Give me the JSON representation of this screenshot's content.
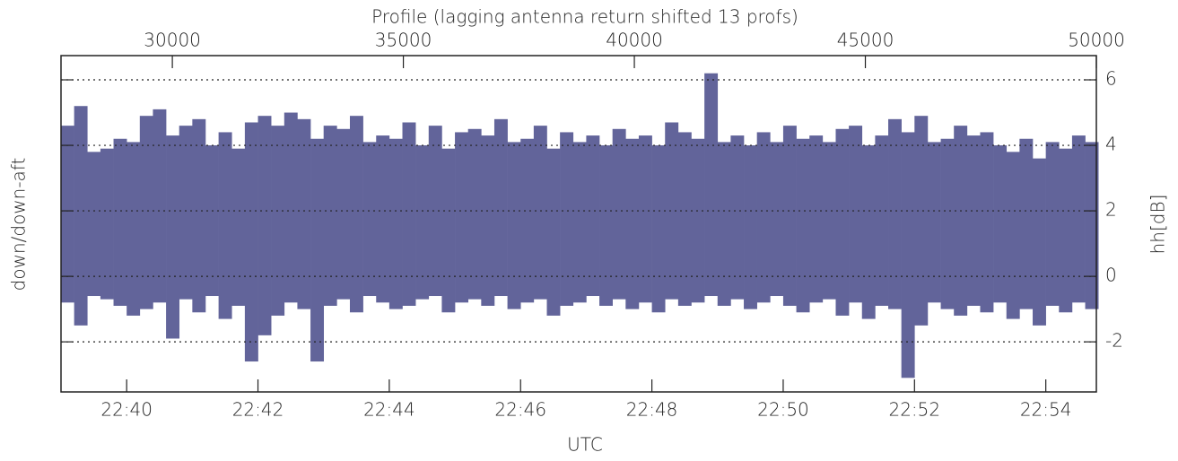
{
  "chart_data": {
    "type": "range",
    "title": "Profile (lagging antenna return shifted 13 profs)",
    "xlabel": "UTC",
    "ylabel": "down/down-aft",
    "y2label": "hh[dB]",
    "color": "#62649a",
    "grid": true,
    "xlim": [
      1359.0,
      1374.77
    ],
    "xticks": [
      {
        "value": 1360,
        "label": "22:40"
      },
      {
        "value": 1362,
        "label": "22:42"
      },
      {
        "value": 1364,
        "label": "22:44"
      },
      {
        "value": 1366,
        "label": "22:46"
      },
      {
        "value": 1368,
        "label": "22:48"
      },
      {
        "value": 1370,
        "label": "22:50"
      },
      {
        "value": 1372,
        "label": "22:52"
      },
      {
        "value": 1374,
        "label": "22:54"
      }
    ],
    "x2lim": [
      27590,
      50000
    ],
    "x2ticks": [
      30000,
      35000,
      40000,
      45000,
      50000
    ],
    "ylim": [
      -3.53,
      6.74
    ],
    "yticks": [
      -2,
      0,
      2,
      4,
      6
    ],
    "x": [
      1359.1,
      1359.3,
      1359.5,
      1359.7,
      1359.9,
      1360.1,
      1360.3,
      1360.5,
      1360.7,
      1360.9,
      1361.1,
      1361.3,
      1361.5,
      1361.7,
      1361.9,
      1362.1,
      1362.3,
      1362.5,
      1362.7,
      1362.9,
      1363.1,
      1363.3,
      1363.5,
      1363.7,
      1363.9,
      1364.1,
      1364.3,
      1364.5,
      1364.7,
      1364.9,
      1365.1,
      1365.3,
      1365.5,
      1365.7,
      1365.9,
      1366.1,
      1366.3,
      1366.5,
      1366.7,
      1366.9,
      1367.1,
      1367.3,
      1367.5,
      1367.7,
      1367.9,
      1368.1,
      1368.3,
      1368.5,
      1368.7,
      1368.9,
      1369.1,
      1369.3,
      1369.5,
      1369.7,
      1369.9,
      1370.1,
      1370.3,
      1370.5,
      1370.7,
      1370.9,
      1371.1,
      1371.3,
      1371.5,
      1371.7,
      1371.9,
      1372.1,
      1372.3,
      1372.5,
      1372.7,
      1372.9,
      1373.1,
      1373.3,
      1373.5,
      1373.7,
      1373.9,
      1374.1,
      1374.3,
      1374.5,
      1374.7
    ],
    "high": [
      4.6,
      5.2,
      3.8,
      3.9,
      4.2,
      4.1,
      4.9,
      5.1,
      4.3,
      4.6,
      4.8,
      4.0,
      4.4,
      3.9,
      4.7,
      4.9,
      4.6,
      5.0,
      4.8,
      4.2,
      4.6,
      4.5,
      4.9,
      4.1,
      4.3,
      4.2,
      4.7,
      4.0,
      4.6,
      3.9,
      4.4,
      4.5,
      4.3,
      4.8,
      4.1,
      4.2,
      4.6,
      3.9,
      4.4,
      4.1,
      4.3,
      4.0,
      4.5,
      4.2,
      4.3,
      4.0,
      4.7,
      4.4,
      4.2,
      6.2,
      4.1,
      4.3,
      4.0,
      4.4,
      4.1,
      4.6,
      4.2,
      4.3,
      4.1,
      4.5,
      4.6,
      4.0,
      4.3,
      4.8,
      4.4,
      4.9,
      4.1,
      4.2,
      4.6,
      4.3,
      4.4,
      4.0,
      3.8,
      4.2,
      3.6,
      4.1,
      3.9,
      4.3,
      4.1
    ],
    "low": [
      -0.8,
      -1.5,
      -0.6,
      -0.7,
      -0.9,
      -1.2,
      -1.0,
      -0.8,
      -1.9,
      -0.7,
      -1.1,
      -0.6,
      -1.3,
      -0.9,
      -2.6,
      -1.8,
      -1.2,
      -0.8,
      -1.0,
      -2.6,
      -0.9,
      -0.7,
      -1.1,
      -0.6,
      -0.8,
      -1.0,
      -0.9,
      -0.7,
      -0.6,
      -1.1,
      -0.8,
      -0.7,
      -0.9,
      -0.6,
      -1.0,
      -0.8,
      -0.7,
      -1.2,
      -0.9,
      -0.8,
      -0.6,
      -0.9,
      -0.7,
      -1.0,
      -0.8,
      -1.1,
      -0.7,
      -0.9,
      -0.8,
      -0.6,
      -0.9,
      -0.7,
      -1.0,
      -0.8,
      -0.6,
      -0.9,
      -1.1,
      -0.8,
      -0.7,
      -1.2,
      -0.8,
      -1.3,
      -0.9,
      -1.0,
      -3.1,
      -1.5,
      -0.8,
      -1.0,
      -1.2,
      -0.9,
      -1.1,
      -0.8,
      -1.3,
      -1.0,
      -1.5,
      -0.9,
      -1.1,
      -0.8,
      -1.0
    ]
  }
}
